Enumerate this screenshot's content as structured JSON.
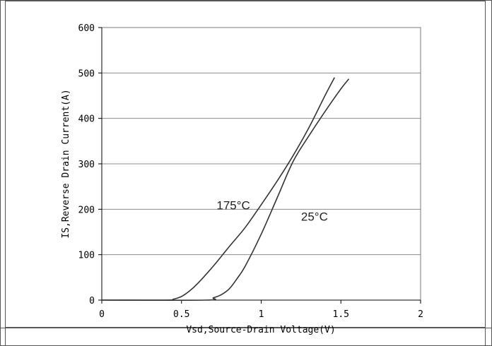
{
  "chart_data": {
    "type": "line",
    "title": "",
    "xlabel": "Vsd,Source-Drain Voltage(V)",
    "ylabel": "IS,Reverse Drain Current(A)",
    "xlim": [
      0,
      2
    ],
    "ylim": [
      0,
      600
    ],
    "xticks": [
      0,
      0.5,
      1,
      1.5,
      2
    ],
    "xtick_labels": [
      "0",
      "0.5",
      "1",
      "1.5",
      "2"
    ],
    "yticks": [
      0,
      100,
      200,
      300,
      400,
      500,
      600
    ],
    "ytick_labels": [
      "0",
      "100",
      "200",
      "300",
      "400",
      "500",
      "600"
    ],
    "grid": {
      "horizontal": true,
      "vertical": false
    },
    "legend": "none",
    "series": [
      {
        "name": "175°C",
        "color": "#333333",
        "x": [
          0,
          0.4,
          0.45,
          0.5,
          0.55,
          0.6,
          0.7,
          0.8,
          0.9,
          1.0,
          1.1,
          1.2,
          1.3,
          1.4,
          1.46
        ],
        "y": [
          0,
          0,
          2,
          8,
          20,
          36,
          75,
          118,
          160,
          210,
          262,
          318,
          380,
          450,
          490
        ]
      },
      {
        "name": "25°C",
        "color": "#333333",
        "x": [
          0,
          0.65,
          0.7,
          0.75,
          0.8,
          0.85,
          0.9,
          1.0,
          1.1,
          1.2,
          1.3,
          1.4,
          1.5,
          1.55
        ],
        "y": [
          0,
          0,
          5,
          12,
          25,
          48,
          75,
          145,
          225,
          305,
          362,
          415,
          465,
          487
        ]
      }
    ],
    "annotations": [
      {
        "text": "175°C",
        "x": 0.72,
        "y": 200
      },
      {
        "text": "25°C",
        "x": 1.25,
        "y": 175
      }
    ]
  }
}
